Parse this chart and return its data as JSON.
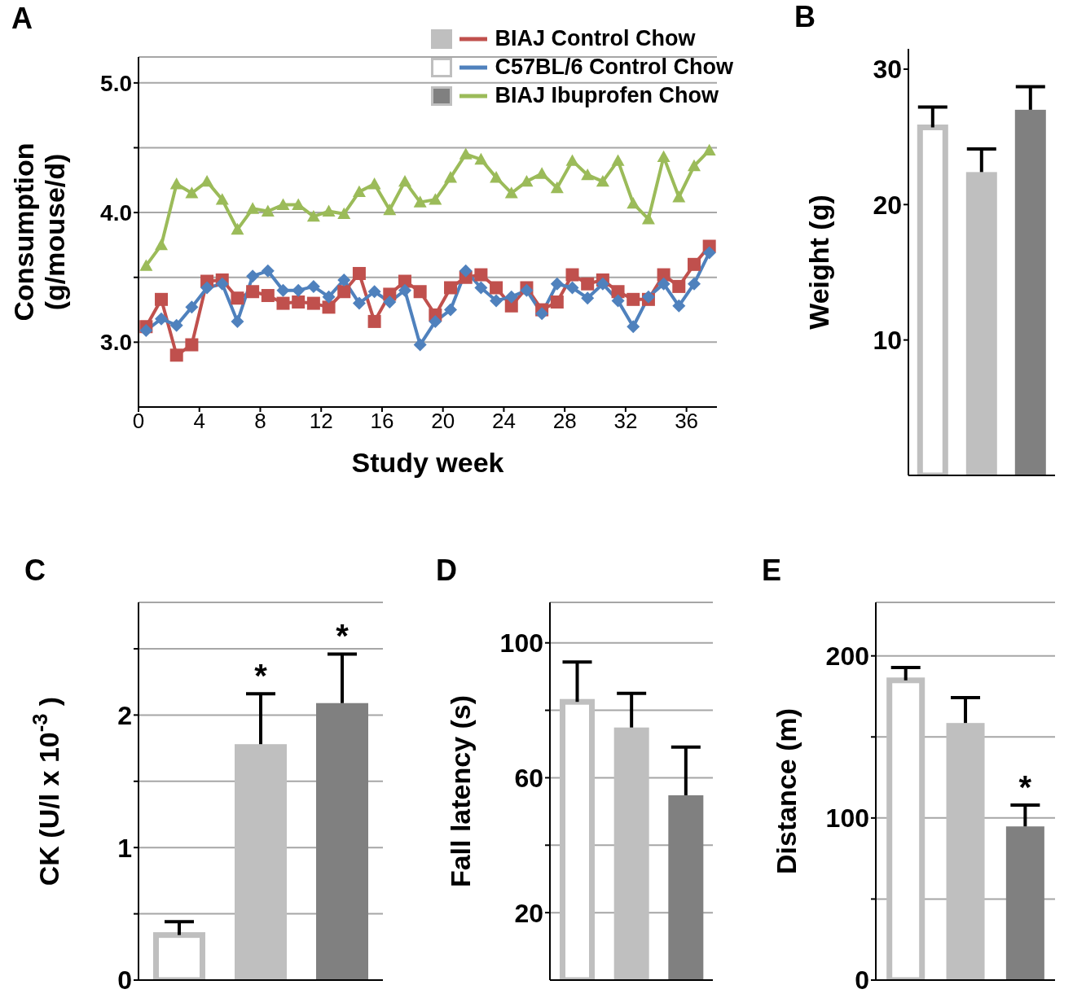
{
  "chart_data": [
    {
      "type": "line",
      "title": "A",
      "xlabel": "Study week",
      "ylabel": "Consumption (g/mouse/d)",
      "x": [
        0.5,
        1.5,
        2.5,
        3.5,
        4.5,
        5.5,
        6.5,
        7.5,
        8.5,
        9.5,
        10.5,
        11.5,
        12.5,
        13.5,
        14.5,
        15.5,
        16.5,
        17.5,
        18.5,
        19.5,
        20.5,
        21.5,
        22.5,
        23.5,
        24.5,
        25.5,
        26.5,
        27.5,
        28.5,
        29.5,
        30.5,
        31.5,
        32.5,
        33.5,
        34.5,
        35.5,
        36.5,
        37.5
      ],
      "xlim": [
        0,
        38
      ],
      "xticks": [
        0,
        4,
        8,
        12,
        16,
        20,
        24,
        28,
        32,
        36
      ],
      "ylim": [
        2.5,
        5.2
      ],
      "yticks": [
        {
          "value": 3,
          "label": "3.0"
        },
        {
          "value": 3.5,
          "label": null
        },
        {
          "value": 4,
          "label": "4.0"
        },
        {
          "value": 4.5,
          "label": null
        },
        {
          "value": 5,
          "label": "5.0"
        }
      ],
      "grid": "y",
      "legend": "top right",
      "series": [
        {
          "name": "BIAJ Control Chow",
          "color": "#c0504d",
          "marker": "square",
          "values": [
            3.12,
            3.33,
            2.9,
            2.98,
            3.47,
            3.48,
            3.34,
            3.39,
            3.36,
            3.3,
            3.31,
            3.3,
            3.27,
            3.39,
            3.53,
            3.16,
            3.37,
            3.47,
            3.39,
            3.21,
            3.42,
            3.5,
            3.52,
            3.42,
            3.28,
            3.42,
            3.25,
            3.31,
            3.52,
            3.45,
            3.48,
            3.39,
            3.33,
            3.33,
            3.52,
            3.43,
            3.6,
            3.74
          ]
        },
        {
          "name": "C57BL/6 Control Chow",
          "color": "#4f81bd",
          "marker": "diamond",
          "values": [
            3.09,
            3.18,
            3.13,
            3.27,
            3.42,
            3.45,
            3.16,
            3.51,
            3.55,
            3.4,
            3.4,
            3.43,
            3.35,
            3.48,
            3.3,
            3.39,
            3.31,
            3.4,
            2.98,
            3.16,
            3.25,
            3.55,
            3.42,
            3.32,
            3.35,
            3.4,
            3.22,
            3.45,
            3.42,
            3.34,
            3.45,
            3.32,
            3.12,
            3.35,
            3.45,
            3.28,
            3.45,
            3.69
          ]
        },
        {
          "name": "BIAJ Ibuprofen Chow",
          "color": "#9bbb59",
          "marker": "triangle",
          "values": [
            3.59,
            3.75,
            4.22,
            4.15,
            4.24,
            4.1,
            3.87,
            4.03,
            4.01,
            4.06,
            4.06,
            3.97,
            4.01,
            3.99,
            4.16,
            4.22,
            4.02,
            4.24,
            4.08,
            4.1,
            4.27,
            4.45,
            4.41,
            4.27,
            4.15,
            4.24,
            4.3,
            4.19,
            4.4,
            4.29,
            4.24,
            4.4,
            4.07,
            3.95,
            4.43,
            4.12,
            4.36,
            4.48
          ]
        }
      ]
    },
    {
      "type": "bar",
      "title": "B",
      "ylabel": "Weight (g)",
      "categories": [
        null,
        null,
        null
      ],
      "values": [
        25.7,
        22.4,
        27.0
      ],
      "colors": [
        "#ffffff",
        "#bfbfbf",
        "#808080"
      ],
      "errors": [
        [
          25.7,
          27.2
        ],
        [
          22.4,
          24.1
        ],
        [
          27.0,
          28.7
        ]
      ],
      "ylim": [
        0,
        31.5
      ],
      "yticks": [
        10,
        20,
        30
      ]
    },
    {
      "type": "bar",
      "title": "C",
      "ylabel": "CK (U/l x 10$^{-3}$)",
      "categories": [
        null,
        null,
        null
      ],
      "values": [
        0.34,
        1.78,
        2.09
      ],
      "colors": [
        "#ffffff",
        "#bfbfbf",
        "#808080"
      ],
      "errors": [
        [
          0.34,
          0.44
        ],
        [
          1.78,
          2.16
        ],
        [
          2.09,
          2.46
        ]
      ],
      "value_labels": [
        null,
        "*",
        "*"
      ],
      "ylim": [
        0,
        2.85
      ],
      "yticks": [
        0,
        {
          "value": 0.5,
          "label": null
        },
        1,
        {
          "value": 1.5,
          "label": null
        },
        2,
        {
          "value": 2.5,
          "label": null
        }
      ],
      "grid": "y"
    },
    {
      "type": "bar",
      "title": "D",
      "ylabel": "Fall latency (s)",
      "categories": [
        null,
        null,
        null
      ],
      "values": [
        82.5,
        74.9,
        54.8
      ],
      "colors": [
        "#ffffff",
        "#bfbfbf",
        "#808080"
      ],
      "errors": [
        [
          82.5,
          94.3
        ],
        [
          74.9,
          85
        ],
        [
          54.8,
          69.1
        ]
      ],
      "ylim": [
        0,
        112
      ],
      "yticks": [
        20,
        {
          "value": 40,
          "label": null
        },
        60,
        {
          "value": 80,
          "label": null
        },
        100
      ],
      "grid": "y"
    },
    {
      "type": "bar",
      "title": "E",
      "ylabel": "Distance (m)",
      "categories": [
        null,
        null,
        null
      ],
      "values": [
        184.9,
        158.6,
        94.8
      ],
      "colors": [
        "#ffffff",
        "#bfbfbf",
        "#808080"
      ],
      "errors": [
        [
          184.9,
          192.8
        ],
        [
          158.6,
          174.2
        ],
        [
          94.8,
          108
        ]
      ],
      "value_labels": [
        null,
        null,
        "*"
      ],
      "ylim": [
        0,
        233
      ],
      "yticks": [
        0,
        {
          "value": 50,
          "label": null
        },
        100,
        {
          "value": 150,
          "label": null
        },
        200
      ],
      "grid": "y"
    }
  ]
}
